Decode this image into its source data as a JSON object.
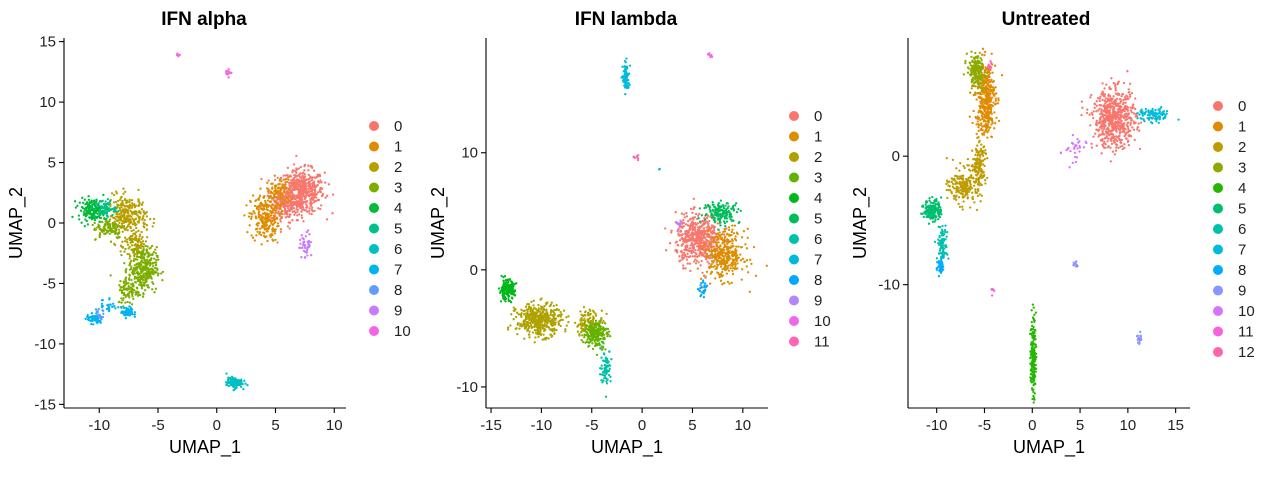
{
  "chart_data": [
    {
      "type": "scatter",
      "title": "IFN alpha",
      "xlabel": "UMAP_1",
      "ylabel": "UMAP_2",
      "xlim": [
        -13,
        11
      ],
      "ylim": [
        -15.3,
        15.3
      ],
      "xticks": [
        -10,
        -5,
        0,
        5,
        10
      ],
      "xtick_labels": [
        "-10",
        "-5",
        "0",
        "5",
        "10"
      ],
      "yticks": [
        -15,
        -10,
        -5,
        0,
        5,
        10,
        15
      ],
      "ytick_labels": [
        "-15",
        "-10",
        "-5",
        "0",
        "5",
        "10",
        "15"
      ],
      "legend_position": "right",
      "series": [
        {
          "name": "0",
          "color": "#F8766D",
          "clusters": [
            {
              "cx": 7.2,
              "cy": 2.6,
              "sx": 1.3,
              "sy": 1.2,
              "n": 520
            },
            {
              "cx": 5.6,
              "cy": 1.4,
              "sx": 1.0,
              "sy": 1.0,
              "n": 150
            }
          ]
        },
        {
          "name": "1",
          "color": "#DE8C00",
          "clusters": [
            {
              "cx": 4.1,
              "cy": 0.4,
              "sx": 0.8,
              "sy": 1.3,
              "n": 230
            },
            {
              "cx": 5.3,
              "cy": 2.6,
              "sx": 0.7,
              "sy": 0.8,
              "n": 90
            }
          ]
        },
        {
          "name": "2",
          "color": "#B79F00",
          "clusters": [
            {
              "cx": -7.6,
              "cy": 0.6,
              "sx": 1.1,
              "sy": 1.1,
              "n": 280
            },
            {
              "cx": -6.8,
              "cy": -1.9,
              "sx": 0.7,
              "sy": 1.0,
              "n": 90
            }
          ]
        },
        {
          "name": "3",
          "color": "#7CAE00",
          "clusters": [
            {
              "cx": -6.3,
              "cy": -3.8,
              "sx": 0.8,
              "sy": 1.2,
              "n": 330
            },
            {
              "cx": -9.2,
              "cy": -0.4,
              "sx": 0.9,
              "sy": 0.6,
              "n": 100
            },
            {
              "cx": -7.5,
              "cy": -5.6,
              "sx": 0.6,
              "sy": 0.8,
              "n": 80
            }
          ]
        },
        {
          "name": "4",
          "color": "#00BA38",
          "clusters": [
            {
              "cx": -10.6,
              "cy": 1.1,
              "sx": 0.8,
              "sy": 0.6,
              "n": 170
            }
          ]
        },
        {
          "name": "5",
          "color": "#00C08B",
          "clusters": [
            {
              "cx": -9.5,
              "cy": 1.2,
              "sx": 0.6,
              "sy": 0.5,
              "n": 60
            }
          ]
        },
        {
          "name": "6",
          "color": "#00BFC4",
          "clusters": [
            {
              "cx": 1.5,
              "cy": -13.2,
              "sx": 0.45,
              "sy": 0.28,
              "n": 130
            }
          ]
        },
        {
          "name": "7",
          "color": "#00B4F0",
          "clusters": [
            {
              "cx": -10.4,
              "cy": -7.9,
              "sx": 0.45,
              "sy": 0.28,
              "n": 70
            },
            {
              "cx": -7.6,
              "cy": -7.4,
              "sx": 0.35,
              "sy": 0.28,
              "n": 60
            },
            {
              "cx": -9.2,
              "cy": -6.8,
              "sx": 0.5,
              "sy": 0.5,
              "n": 25
            }
          ]
        },
        {
          "name": "8",
          "color": "#619CFF",
          "clusters": [
            {
              "cx": -10.0,
              "cy": -7.6,
              "sx": 0.3,
              "sy": 0.3,
              "n": 15
            }
          ]
        },
        {
          "name": "9",
          "color": "#C77CFF",
          "clusters": [
            {
              "cx": 7.6,
              "cy": -1.8,
              "sx": 0.35,
              "sy": 0.7,
              "n": 45
            }
          ]
        },
        {
          "name": "10",
          "color": "#F564E3",
          "clusters": [
            {
              "cx": 1.0,
              "cy": 12.5,
              "sx": 0.2,
              "sy": 0.2,
              "n": 12
            },
            {
              "cx": -3.3,
              "cy": 13.9,
              "sx": 0.12,
              "sy": 0.1,
              "n": 6
            }
          ]
        }
      ]
    },
    {
      "type": "scatter",
      "title": "IFN lambda",
      "xlabel": "UMAP_1",
      "ylabel": "UMAP_2",
      "xlim": [
        -15.5,
        12.5
      ],
      "ylim": [
        -11.8,
        19.8
      ],
      "xticks": [
        -15,
        -10,
        -5,
        0,
        5,
        10
      ],
      "xtick_labels": [
        "-15",
        "-10",
        "-5",
        "0",
        "5",
        "10"
      ],
      "yticks": [
        -10,
        0,
        10
      ],
      "ytick_labels": [
        "-10",
        "0",
        "10"
      ],
      "legend_position": "right",
      "series": [
        {
          "name": "0",
          "color": "#F8766D",
          "clusters": [
            {
              "cx": 5.6,
              "cy": 2.6,
              "sx": 1.5,
              "sy": 1.4,
              "n": 520
            }
          ]
        },
        {
          "name": "1",
          "color": "#DB8E00",
          "clusters": [
            {
              "cx": 8.2,
              "cy": 1.3,
              "sx": 1.3,
              "sy": 1.4,
              "n": 340
            }
          ]
        },
        {
          "name": "2",
          "color": "#AEA200",
          "clusters": [
            {
              "cx": -10.2,
              "cy": -4.3,
              "sx": 1.5,
              "sy": 0.9,
              "n": 420
            },
            {
              "cx": -5.2,
              "cy": -4.6,
              "sx": 0.9,
              "sy": 0.8,
              "n": 130
            }
          ]
        },
        {
          "name": "3",
          "color": "#64B200",
          "clusters": [
            {
              "cx": -4.6,
              "cy": -5.5,
              "sx": 0.8,
              "sy": 0.8,
              "n": 180
            }
          ]
        },
        {
          "name": "4",
          "color": "#00B81B",
          "clusters": [
            {
              "cx": -13.4,
              "cy": -1.7,
              "sx": 0.5,
              "sy": 0.55,
              "n": 180
            }
          ]
        },
        {
          "name": "5",
          "color": "#00BD5C",
          "clusters": [
            {
              "cx": 7.9,
              "cy": 4.9,
              "sx": 1.2,
              "sy": 0.6,
              "n": 150
            }
          ]
        },
        {
          "name": "6",
          "color": "#00C1A7",
          "clusters": [
            {
              "cx": -3.6,
              "cy": -8.3,
              "sx": 0.35,
              "sy": 1.0,
              "n": 80
            }
          ]
        },
        {
          "name": "7",
          "color": "#00BADE",
          "clusters": [
            {
              "cx": -1.6,
              "cy": 16.4,
              "sx": 0.22,
              "sy": 0.8,
              "n": 90
            },
            {
              "cx": 1.7,
              "cy": 8.6,
              "sx": 0.05,
              "sy": 0.1,
              "n": 3
            }
          ]
        },
        {
          "name": "8",
          "color": "#00A6FF",
          "clusters": [
            {
              "cx": 6.1,
              "cy": -1.7,
              "sx": 0.3,
              "sy": 0.4,
              "n": 25
            }
          ]
        },
        {
          "name": "9",
          "color": "#B385FF",
          "clusters": [
            {
              "cx": 3.7,
              "cy": 3.9,
              "sx": 0.25,
              "sy": 0.25,
              "n": 10
            }
          ]
        },
        {
          "name": "10",
          "color": "#EF67EB",
          "clusters": [
            {
              "cx": 6.8,
              "cy": 18.3,
              "sx": 0.12,
              "sy": 0.15,
              "n": 8
            }
          ]
        },
        {
          "name": "11",
          "color": "#FF63B6",
          "clusters": [
            {
              "cx": -0.6,
              "cy": 9.6,
              "sx": 0.15,
              "sy": 0.12,
              "n": 8
            }
          ]
        }
      ]
    },
    {
      "type": "scatter",
      "title": "Untreated",
      "xlabel": "UMAP_1",
      "ylabel": "UMAP_2",
      "xlim": [
        -13,
        16.5
      ],
      "ylim": [
        -19.6,
        9.2
      ],
      "xticks": [
        -10,
        -5,
        0,
        5,
        10,
        15
      ],
      "xtick_labels": [
        "-10",
        "-5",
        "0",
        "5",
        "10",
        "15"
      ],
      "yticks": [
        -10,
        0
      ],
      "ytick_labels": [
        "-10",
        "0"
      ],
      "legend_position": "right",
      "series": [
        {
          "name": "0",
          "color": "#F8766D",
          "clusters": [
            {
              "cx": 8.6,
              "cy": 2.9,
              "sx": 1.5,
              "sy": 1.5,
              "n": 600
            }
          ]
        },
        {
          "name": "1",
          "color": "#E18A00",
          "clusters": [
            {
              "cx": -4.9,
              "cy": 4.5,
              "sx": 0.7,
              "sy": 2.0,
              "n": 380
            }
          ]
        },
        {
          "name": "2",
          "color": "#BE9C00",
          "clusters": [
            {
              "cx": -7.0,
              "cy": -2.3,
              "sx": 1.1,
              "sy": 0.9,
              "n": 220
            },
            {
              "cx": -5.6,
              "cy": -0.5,
              "sx": 0.5,
              "sy": 1.0,
              "n": 120
            }
          ]
        },
        {
          "name": "3",
          "color": "#8CAB00",
          "clusters": [
            {
              "cx": -5.9,
              "cy": 6.6,
              "sx": 0.6,
              "sy": 0.8,
              "n": 180
            }
          ]
        },
        {
          "name": "4",
          "color": "#24B700",
          "clusters": [
            {
              "cx": 0.1,
              "cy": -15.6,
              "sx": 0.18,
              "sy": 2.1,
              "n": 180
            }
          ]
        },
        {
          "name": "5",
          "color": "#00BE70",
          "clusters": [
            {
              "cx": -10.4,
              "cy": -4.2,
              "sx": 0.6,
              "sy": 0.55,
              "n": 170
            }
          ]
        },
        {
          "name": "6",
          "color": "#00C1AB",
          "clusters": [
            {
              "cx": -9.4,
              "cy": -6.8,
              "sx": 0.35,
              "sy": 0.9,
              "n": 90
            }
          ]
        },
        {
          "name": "7",
          "color": "#00BBDA",
          "clusters": [
            {
              "cx": 12.8,
              "cy": 3.2,
              "sx": 1.1,
              "sy": 0.35,
              "n": 90
            }
          ]
        },
        {
          "name": "8",
          "color": "#00ACFC",
          "clusters": [
            {
              "cx": -9.6,
              "cy": -8.6,
              "sx": 0.25,
              "sy": 0.5,
              "n": 40
            }
          ]
        },
        {
          "name": "9",
          "color": "#8B93FF",
          "clusters": [
            {
              "cx": 11.2,
              "cy": -14.3,
              "sx": 0.2,
              "sy": 0.35,
              "n": 18
            },
            {
              "cx": 4.5,
              "cy": -8.4,
              "sx": 0.15,
              "sy": 0.2,
              "n": 10
            }
          ]
        },
        {
          "name": "10",
          "color": "#D575FE",
          "clusters": [
            {
              "cx": 4.4,
              "cy": 0.3,
              "sx": 0.8,
              "sy": 0.9,
              "n": 30
            }
          ]
        },
        {
          "name": "11",
          "color": "#F962DD",
          "clusters": [
            {
              "cx": -4.2,
              "cy": -10.4,
              "sx": 0.1,
              "sy": 0.4,
              "n": 8
            }
          ]
        },
        {
          "name": "12",
          "color": "#FF65AC",
          "clusters": [
            {
              "cx": -4.5,
              "cy": 7.0,
              "sx": 0.25,
              "sy": 0.25,
              "n": 10
            }
          ]
        }
      ]
    }
  ]
}
